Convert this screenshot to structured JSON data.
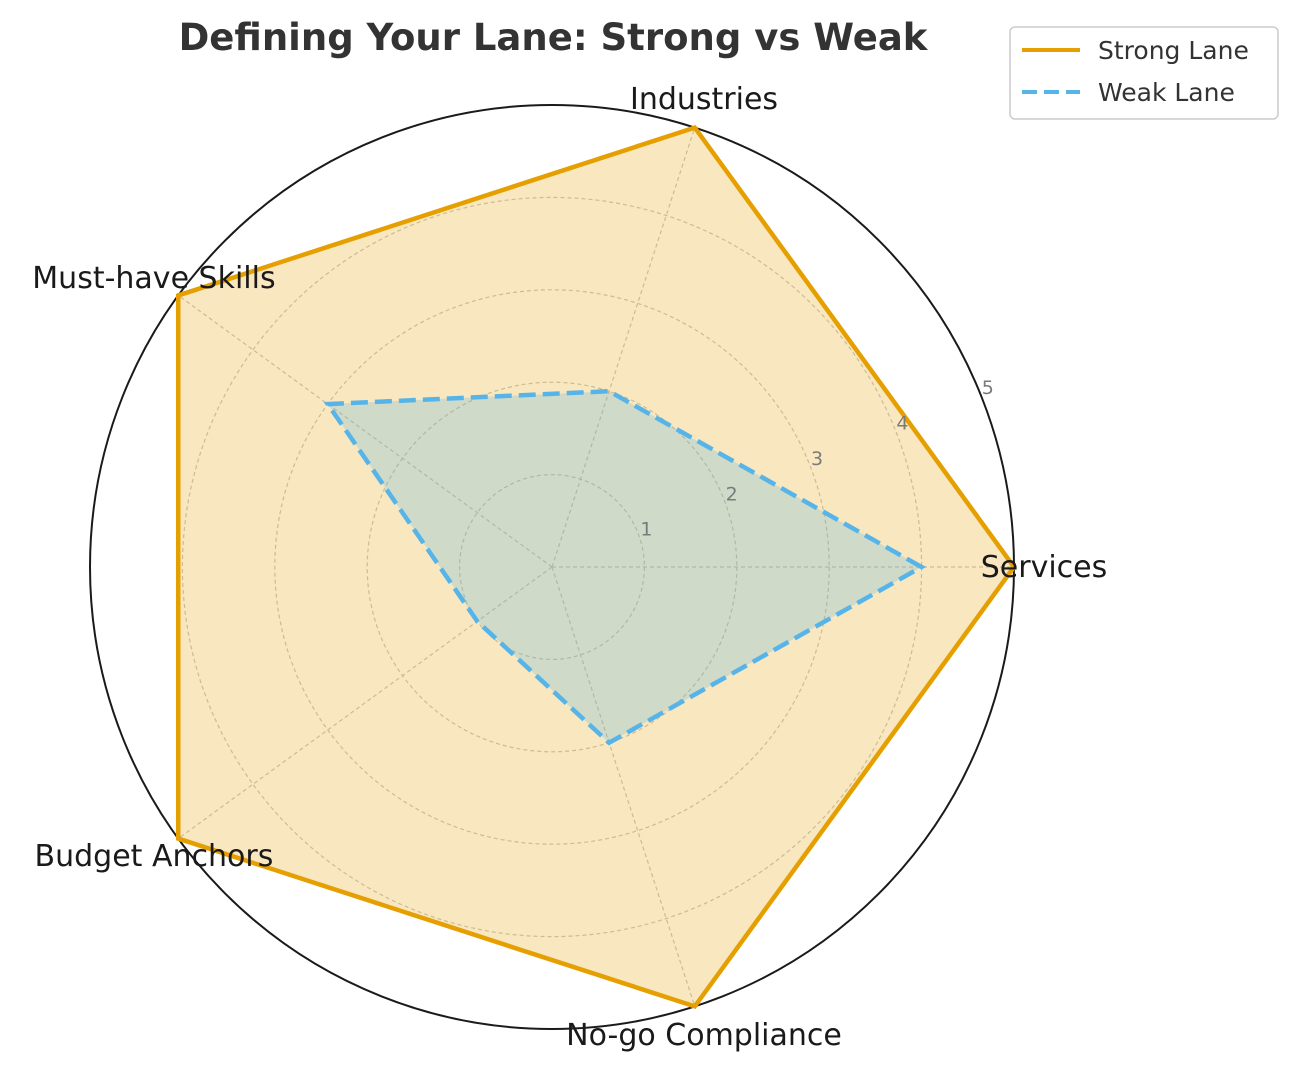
{
  "chart_data": {
    "type": "radar",
    "title": "Defining Your Lane: Strong vs Weak",
    "categories": [
      "Services",
      "Industries",
      "Must-have Skills",
      "Budget Anchors",
      "No-go Compliance"
    ],
    "rlim": [
      0,
      5
    ],
    "rticks": [
      1,
      2,
      3,
      4,
      5
    ],
    "rtick_labels": [
      "1",
      "2",
      "3",
      "4",
      "5"
    ],
    "grid": true,
    "legend_position": "top-right",
    "series": [
      {
        "name": "Strong Lane",
        "values": [
          5,
          5,
          5,
          5,
          5
        ],
        "color": "#E69F00",
        "line_style": "solid",
        "fill_color": "#E69F00"
      },
      {
        "name": "Weak Lane",
        "values": [
          4,
          2,
          3,
          1,
          2
        ],
        "color": "#56B4E9",
        "line_style": "dashed",
        "fill_color": "#56B4E9"
      }
    ]
  }
}
